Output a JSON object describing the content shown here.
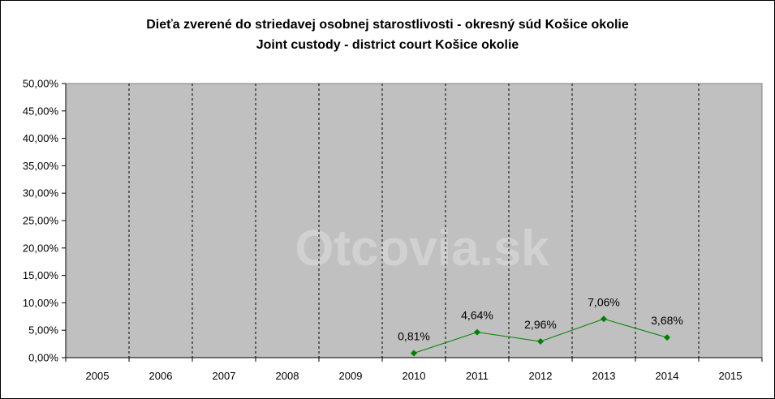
{
  "chart_data": {
    "type": "line",
    "title": "Dieťa zverené do striedavej osobnej starostlivosti - okresný súd Košice okolie",
    "subtitle": "Joint custody - district court Košice okolie",
    "watermark": "Otcovia.sk",
    "categories": [
      "2005",
      "2006",
      "2007",
      "2008",
      "2009",
      "2010",
      "2011",
      "2012",
      "2013",
      "2014",
      "2015"
    ],
    "series": [
      {
        "values": [
          null,
          null,
          null,
          null,
          null,
          0.81,
          4.64,
          2.96,
          7.06,
          3.68,
          null
        ],
        "data_labels": [
          null,
          null,
          null,
          null,
          null,
          "0,81%",
          "4,64%",
          "2,96%",
          "7,06%",
          "3,68%",
          null
        ],
        "color": "#008000"
      }
    ],
    "y_ticks": [
      "0,00%",
      "5,00%",
      "10,00%",
      "15,00%",
      "20,00%",
      "25,00%",
      "30,00%",
      "35,00%",
      "40,00%",
      "45,00%",
      "50,00%"
    ],
    "ylim": [
      0,
      50
    ],
    "y_step": 5,
    "xlabel": "",
    "ylabel": "",
    "grid": "vertical dashed",
    "plot_background": "#c0c0c0",
    "legend": "none"
  }
}
